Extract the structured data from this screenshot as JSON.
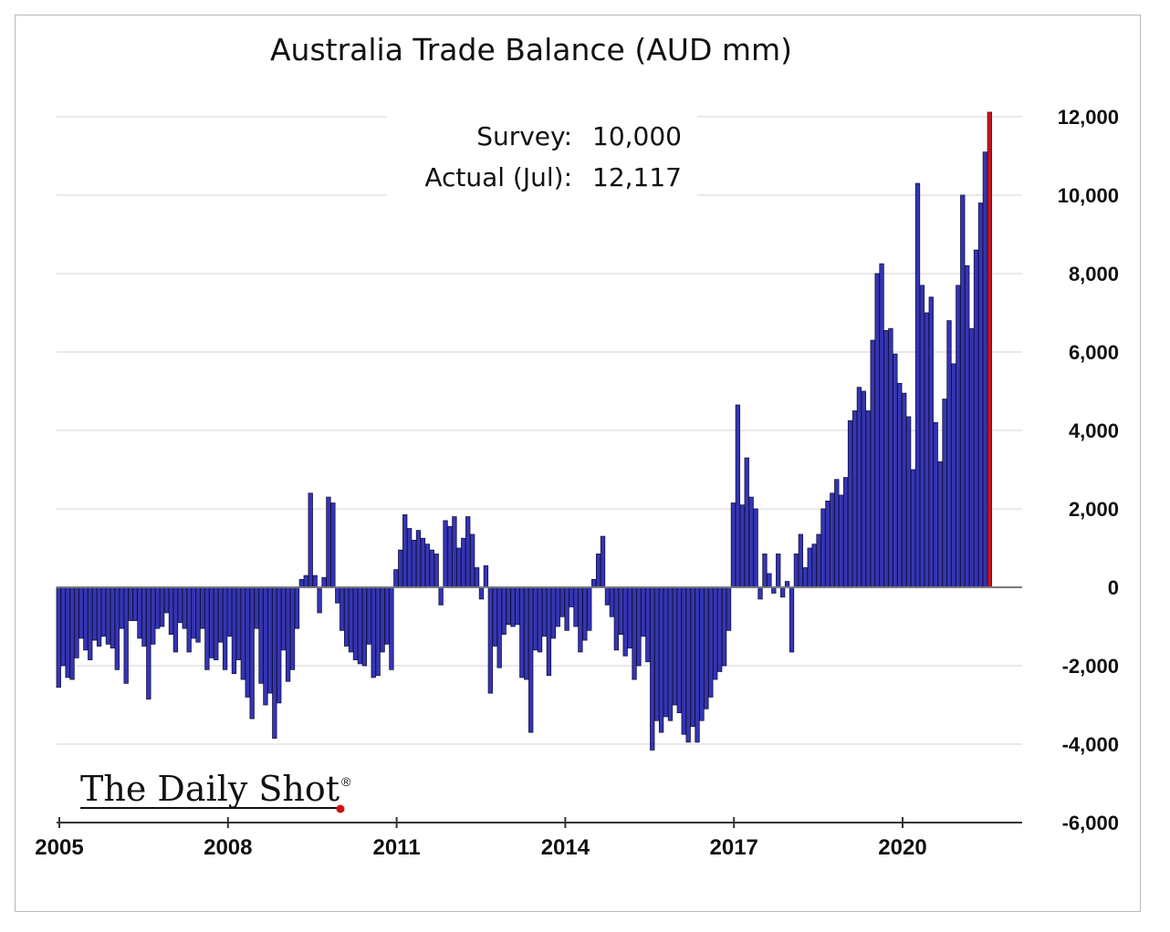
{
  "chart_data": {
    "type": "bar",
    "title": "Australia Trade Balance (AUD mm)",
    "xlabel": "",
    "ylabel": "",
    "ylim": [
      -6000,
      12000
    ],
    "y_ticks": [
      12000,
      10000,
      8000,
      6000,
      4000,
      2000,
      0,
      -2000,
      -4000,
      -6000
    ],
    "y_tick_labels": [
      "12,000",
      "10,000",
      "8,000",
      "6,000",
      "4,000",
      "2,000",
      "0",
      "-2,000",
      "-4,000",
      "-6,000"
    ],
    "x_tick_labels": [
      "2005",
      "2008",
      "2011",
      "2014",
      "2017",
      "2020"
    ],
    "x_tick_years": [
      2005,
      2008,
      2011,
      2014,
      2017,
      2020
    ],
    "x_start": "2005-01",
    "x_end": "2021-07",
    "grid": true,
    "series": [
      {
        "values": [
          -2550,
          -2000,
          -2300,
          -2350,
          -1800,
          -1300,
          -1600,
          -1850,
          -1350,
          -1500,
          -1250,
          -1450,
          -1550,
          -2100,
          -1050,
          -2450,
          -850,
          -850,
          -1300,
          -1500,
          -2850,
          -1450,
          -1050,
          -1000,
          -650,
          -1200,
          -1650,
          -900,
          -1050,
          -1650,
          -1300,
          -1400,
          -1050,
          -2100,
          -1800,
          -1850,
          -1400,
          -2100,
          -1250,
          -2200,
          -1850,
          -2350,
          -2800,
          -3350,
          -1050,
          -2450,
          -3000,
          -2700,
          -3850,
          -2950,
          -1600,
          -2400,
          -2100,
          -1050,
          200,
          300,
          2400,
          300,
          -650,
          250,
          2300,
          2150,
          -400,
          -1100,
          -1500,
          -1650,
          -1850,
          -1950,
          -2000,
          -1450,
          -2300,
          -2250,
          -1650,
          -1450,
          -2100,
          450,
          950,
          1850,
          1500,
          1200,
          1450,
          1250,
          1100,
          950,
          850,
          -450,
          1700,
          1550,
          1800,
          1000,
          1250,
          1800,
          1350,
          500,
          -300,
          550,
          -2700,
          -1500,
          -2050,
          -1200,
          -950,
          -1000,
          -950,
          -2300,
          -2350,
          -3700,
          -1600,
          -1650,
          -1250,
          -2250,
          -1300,
          -1000,
          -750,
          -1100,
          -500,
          -1000,
          -1650,
          -1350,
          -1100,
          200,
          850,
          1300,
          -450,
          -750,
          -1600,
          -1200,
          -1750,
          -1550,
          -2350,
          -2000,
          -1250,
          -1900,
          -4150,
          -3400,
          -3700,
          -3300,
          -3400,
          -3000,
          -3200,
          -3750,
          -3950,
          -3550,
          -3950,
          -3400,
          -3100,
          -2800,
          -2350,
          -2150,
          -2000,
          -1100,
          2150,
          4650,
          2100,
          3300,
          2300,
          2000,
          -300,
          850,
          350,
          -150,
          850,
          -250,
          150,
          -1650,
          850,
          1350,
          500,
          1000,
          1100,
          1350,
          2000,
          2200,
          2400,
          2750,
          2350,
          2800,
          4250,
          4500,
          5100,
          5000,
          4500,
          6300,
          8000,
          8250,
          6550,
          6600,
          5950,
          5200,
          4950,
          4350,
          3000,
          10300,
          7700,
          7000,
          7400,
          4200,
          3200,
          4800,
          6800,
          5700,
          7700,
          10000,
          8200,
          6600,
          8600,
          9800,
          11100,
          12117
        ]
      }
    ],
    "annotations": {
      "survey_label": "Survey:",
      "survey_value": "10,000",
      "actual_label": "Actual (Jul):",
      "actual_value": "12,117"
    },
    "colors": {
      "bar_fill": "#3535b5",
      "bar_stroke": "#141440",
      "last_bar_fill": "#c0141c",
      "zero_line": "#7a7a7a",
      "grid": "#e2e2e2"
    }
  },
  "branding": {
    "logo_text": "The Daily Shot",
    "logo_mark": "®"
  }
}
